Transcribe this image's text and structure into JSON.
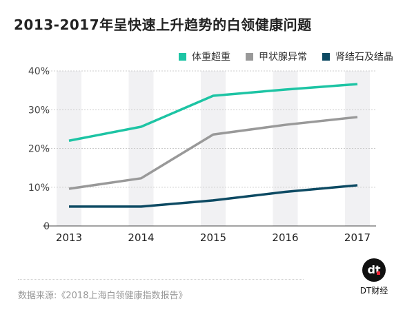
{
  "chart_data": {
    "type": "line",
    "title": "2013-2017年呈快速上升趋势的白领健康问题",
    "categories": [
      "2013",
      "2014",
      "2015",
      "2016",
      "2017"
    ],
    "y_ticks": [
      "0",
      "10%",
      "20%",
      "30%",
      "40%"
    ],
    "ylim": [
      0,
      40
    ],
    "unit": "%",
    "grid": "dashed horizontal",
    "legend_position": "top-right",
    "series": [
      {
        "name": "体重超重",
        "color": "#1dc4a4",
        "values": [
          22.0,
          25.6,
          33.6,
          35.2,
          36.6
        ]
      },
      {
        "name": "甲状腺异常",
        "color": "#999999",
        "values": [
          9.6,
          12.3,
          23.6,
          26.1,
          28.1
        ]
      },
      {
        "name": "肾结石及结晶",
        "color": "#0d4a63",
        "values": [
          5.0,
          5.0,
          6.6,
          8.8,
          10.5
        ]
      }
    ]
  },
  "source": "数据来源:《2018上海白领健康指数报告》",
  "logo": {
    "mark": "dt",
    "name": "DT财经"
  }
}
